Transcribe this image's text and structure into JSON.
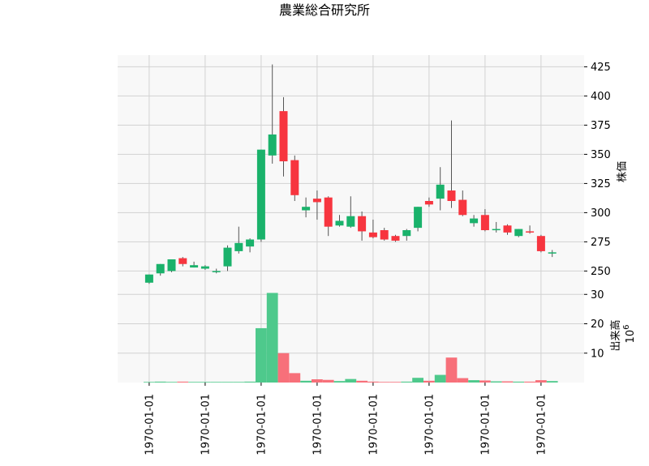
{
  "chart_data": {
    "type": "candlestick",
    "title": "農業総合研究所",
    "x_tick_labels": [
      "1970-01-01",
      "1970-01-01",
      "1970-01-01",
      "1970-01-01",
      "1970-01-01",
      "1970-01-01",
      "1970-01-01",
      "1970-01-01"
    ],
    "price_panel": {
      "ylabel": "株価",
      "ylim": [
        235,
        435
      ],
      "yticks": [
        250,
        275,
        300,
        325,
        350,
        375,
        400,
        425
      ],
      "grid": true
    },
    "volume_panel": {
      "ylabel": "出来高",
      "scale_label_base": "10",
      "scale_label_exp": "6",
      "ylim": [
        0,
        32
      ],
      "yticks": [
        10,
        20,
        30
      ],
      "grid": true
    },
    "colors": {
      "up": "#1ab26b",
      "down": "#f7353f",
      "up_volume": "#4ec98c",
      "down_volume": "#f7707a",
      "wick": "#555555"
    },
    "candles": [
      {
        "o": 240,
        "h": 247,
        "l": 239,
        "c": 247,
        "v": 0.2
      },
      {
        "o": 248,
        "h": 256,
        "l": 246,
        "c": 256,
        "v": 0.3
      },
      {
        "o": 250,
        "h": 260,
        "l": 249,
        "c": 260,
        "v": 0.2
      },
      {
        "o": 261,
        "h": 262,
        "l": 254,
        "c": 256,
        "v": 0.3
      },
      {
        "o": 253,
        "h": 258,
        "l": 253,
        "c": 255,
        "v": 0.2
      },
      {
        "o": 252,
        "h": 255,
        "l": 251,
        "c": 254,
        "v": 0.2
      },
      {
        "o": 250,
        "h": 252,
        "l": 248,
        "c": 250,
        "v": 0.2
      },
      {
        "o": 254,
        "h": 272,
        "l": 250,
        "c": 270,
        "v": 0.2
      },
      {
        "o": 267,
        "h": 288,
        "l": 265,
        "c": 274,
        "v": 0.2
      },
      {
        "o": 271,
        "h": 278,
        "l": 266,
        "c": 277,
        "v": 0.3
      },
      {
        "o": 277,
        "h": 354,
        "l": 275,
        "c": 354,
        "v": 18.5
      },
      {
        "o": 349,
        "h": 427,
        "l": 342,
        "c": 367,
        "v": 30.5
      },
      {
        "o": 387,
        "h": 399,
        "l": 331,
        "c": 344,
        "v": 10
      },
      {
        "o": 345,
        "h": 349,
        "l": 310,
        "c": 315,
        "v": 3.2
      },
      {
        "o": 302,
        "h": 313,
        "l": 296,
        "c": 305,
        "v": 0.6
      },
      {
        "o": 312,
        "h": 319,
        "l": 294,
        "c": 309,
        "v": 1.1
      },
      {
        "o": 313,
        "h": 314,
        "l": 280,
        "c": 288,
        "v": 0.9
      },
      {
        "o": 289,
        "h": 298,
        "l": 288,
        "c": 293,
        "v": 0.5
      },
      {
        "o": 288,
        "h": 314,
        "l": 287,
        "c": 297,
        "v": 1.2
      },
      {
        "o": 297,
        "h": 301,
        "l": 276,
        "c": 284,
        "v": 0.6
      },
      {
        "o": 283,
        "h": 294,
        "l": 278,
        "c": 279,
        "v": 0.3
      },
      {
        "o": 285,
        "h": 287,
        "l": 276,
        "c": 277,
        "v": 0.2
      },
      {
        "o": 280,
        "h": 281,
        "l": 275,
        "c": 276,
        "v": 0.2
      },
      {
        "o": 280,
        "h": 286,
        "l": 276,
        "c": 285,
        "v": 0.3
      },
      {
        "o": 287,
        "h": 305,
        "l": 284,
        "c": 305,
        "v": 1.6
      },
      {
        "o": 310,
        "h": 313,
        "l": 305,
        "c": 307,
        "v": 0.6
      },
      {
        "o": 312,
        "h": 339,
        "l": 302,
        "c": 324,
        "v": 2.6
      },
      {
        "o": 319,
        "h": 379,
        "l": 304,
        "c": 310,
        "v": 8.5
      },
      {
        "o": 311,
        "h": 319,
        "l": 297,
        "c": 298,
        "v": 1.5
      },
      {
        "o": 291,
        "h": 298,
        "l": 288,
        "c": 295,
        "v": 0.8
      },
      {
        "o": 298,
        "h": 303,
        "l": 284,
        "c": 285,
        "v": 0.7
      },
      {
        "o": 286,
        "h": 292,
        "l": 283,
        "c": 286,
        "v": 0.4
      },
      {
        "o": 289,
        "h": 290,
        "l": 281,
        "c": 283,
        "v": 0.4
      },
      {
        "o": 280,
        "h": 286,
        "l": 279,
        "c": 286,
        "v": 0.3
      },
      {
        "o": 284,
        "h": 289,
        "l": 282,
        "c": 283,
        "v": 0.3
      },
      {
        "o": 280,
        "h": 281,
        "l": 266,
        "c": 267,
        "v": 0.8
      },
      {
        "o": 265,
        "h": 268,
        "l": 262,
        "c": 266,
        "v": 0.5
      }
    ]
  }
}
